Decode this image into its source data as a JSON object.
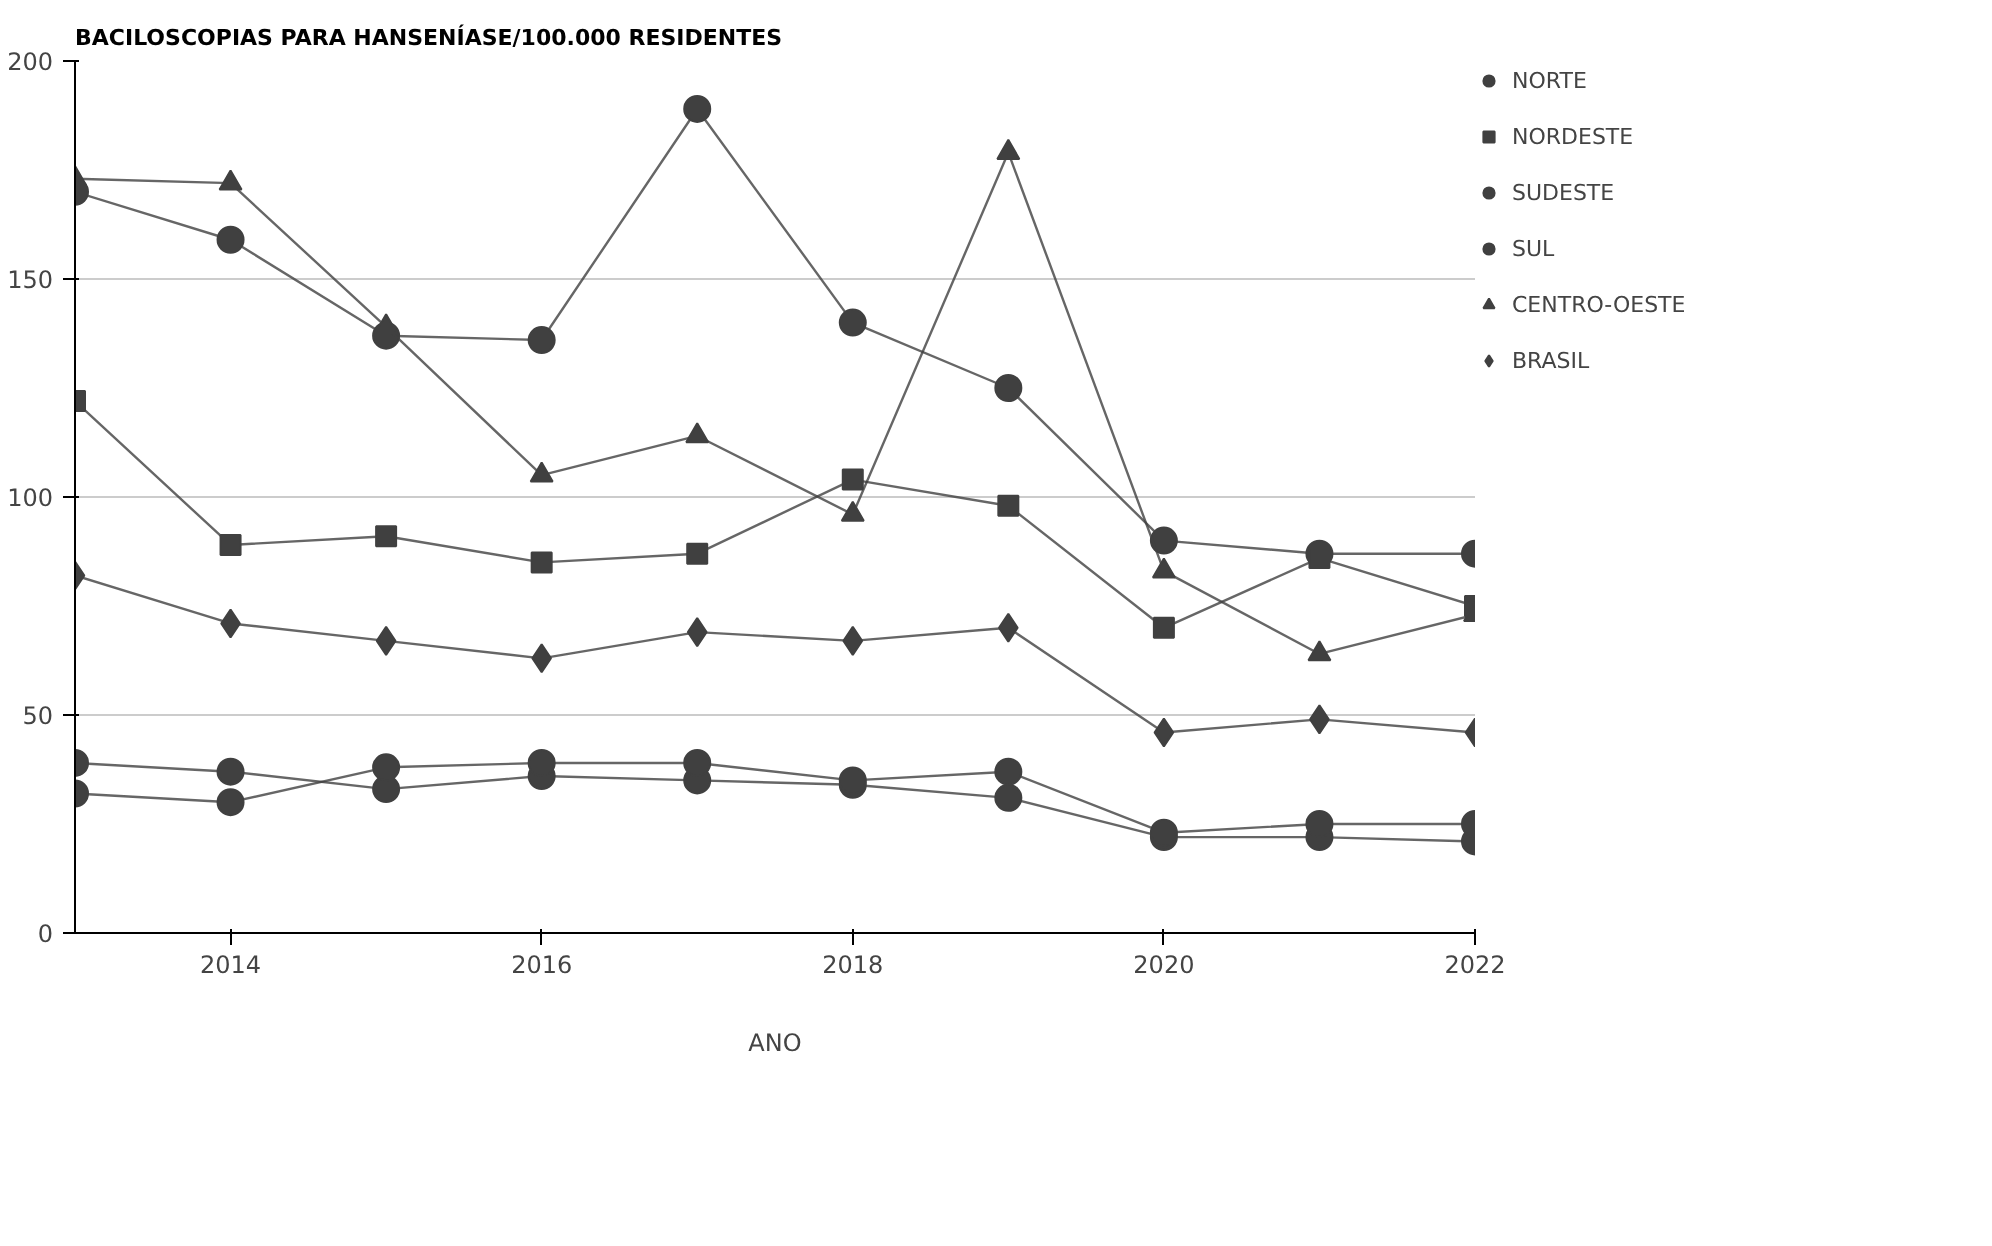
{
  "chart_data": {
    "type": "line",
    "title": "BACILOSCOPIAS PARA HANSENÍASE/100.000 RESIDENTES",
    "xlabel": "ANO",
    "x": [
      2013,
      2014,
      2015,
      2016,
      2017,
      2018,
      2019,
      2020,
      2021,
      2022
    ],
    "xlim": [
      2013,
      2022
    ],
    "xticks": [
      2014,
      2016,
      2018,
      2020,
      2022
    ],
    "ylim": [
      0,
      200
    ],
    "yticks": [
      0,
      50,
      100,
      150,
      200
    ],
    "grid": "y",
    "legend": "right",
    "series": [
      {
        "name": "NORTE",
        "color": "#404040",
        "marker": "circle",
        "values": [
          170,
          159,
          137,
          136,
          189,
          140,
          125,
          90,
          87,
          87
        ]
      },
      {
        "name": "NORDESTE",
        "color": "#404040",
        "marker": "square",
        "values": [
          122,
          89,
          91,
          85,
          87,
          104,
          98,
          70,
          86,
          75
        ]
      },
      {
        "name": "SUDESTE",
        "color": "#404040",
        "marker": "circle",
        "values": [
          39,
          37,
          33,
          36,
          35,
          34,
          31,
          22,
          22,
          21
        ]
      },
      {
        "name": "SUL",
        "color": "#404040",
        "marker": "circle",
        "values": [
          32,
          30,
          38,
          39,
          39,
          35,
          37,
          23,
          25,
          25
        ]
      },
      {
        "name": "CENTRO-OESTE",
        "color": "#404040",
        "marker": "triangle",
        "values": [
          173,
          172,
          139,
          105,
          114,
          96,
          179,
          83,
          64,
          73
        ]
      },
      {
        "name": "BRASIL",
        "color": "#404040",
        "marker": "diamond",
        "values": [
          82,
          71,
          67,
          63,
          69,
          67,
          70,
          46,
          49,
          46
        ]
      }
    ]
  }
}
